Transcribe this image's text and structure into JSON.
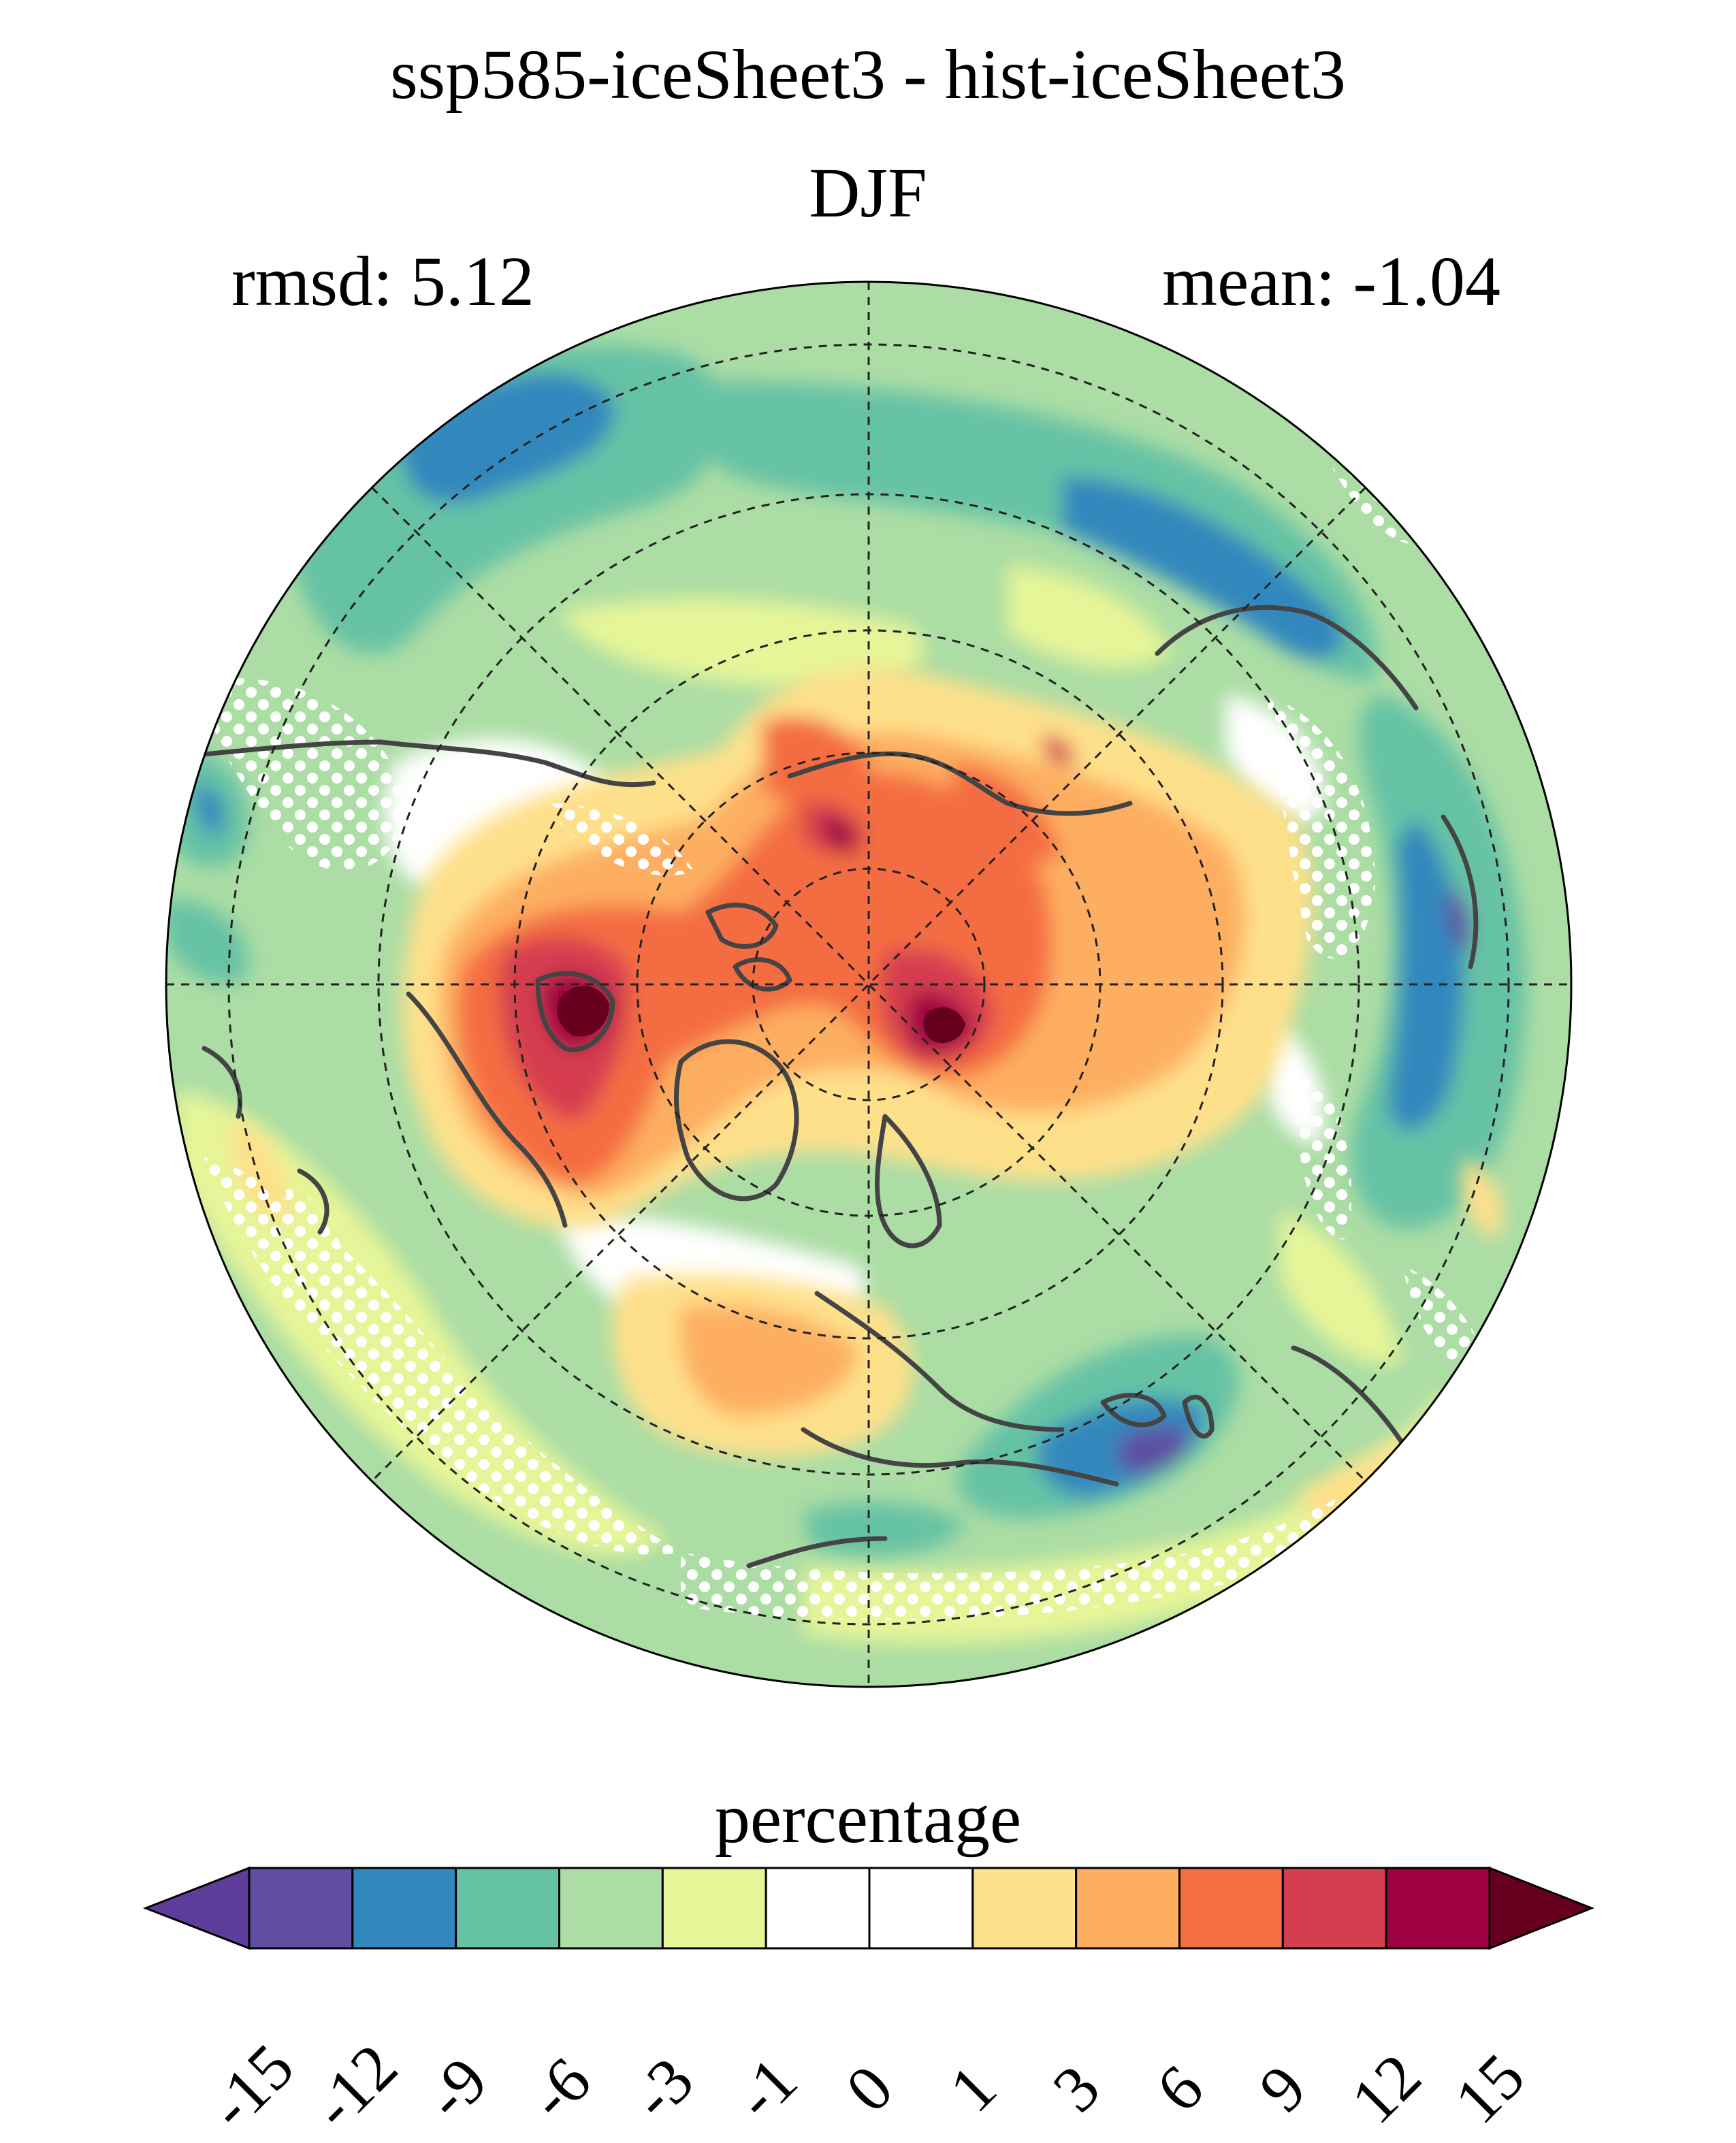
{
  "header": {
    "title": "ssp585-iceSheet3 - hist-iceSheet3",
    "season": "DJF",
    "rmsd": "rmsd: 5.12",
    "mean": "mean: -1.04"
  },
  "colorbar": {
    "unit_label": "percentage",
    "tick_labels": [
      "-15",
      "-12",
      "-9",
      "-6",
      "-3",
      "-1",
      "0",
      "1",
      "3",
      "6",
      "9",
      "12",
      "15"
    ],
    "colors": [
      "#5e3c99",
      "#5f4ea2",
      "#3288bd",
      "#66c2a5",
      "#abdda4",
      "#e6f598",
      "#ffffff",
      "#ffffff",
      "#fee08b",
      "#fdae61",
      "#f46d43",
      "#d53e4f",
      "#9e0142",
      "#67001f"
    ]
  },
  "map": {
    "projection": "north-polar-stereographic",
    "stippling": "white dots mark insignificant areas",
    "land_outline_color": "#444444",
    "grid_line_style": "dashed"
  }
}
